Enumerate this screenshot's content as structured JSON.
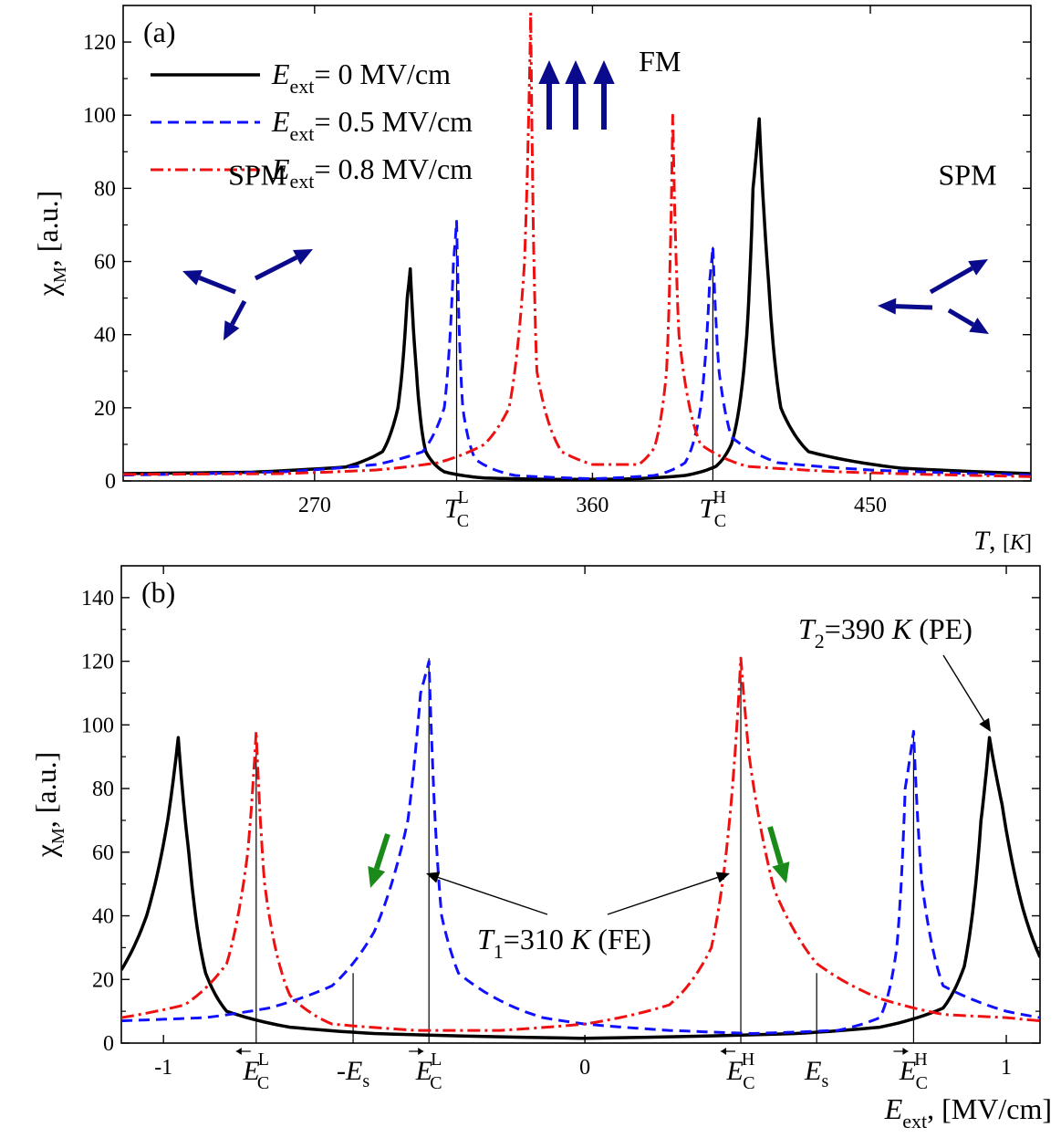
{
  "colors": {
    "e0": "#000000",
    "e05": "#1010ff",
    "e08": "#ee1111",
    "spin_arrow": "#0a0a8c",
    "green_arrow": "#1a8a1a"
  },
  "chart_data": [
    {
      "type": "line",
      "panel_label": "(a)",
      "xlabel": "T, [K]",
      "ylabel": "χM, [a.u.]",
      "xlim": [
        208,
        502
      ],
      "ylim": [
        0,
        130
      ],
      "xticks": [
        270,
        360,
        450
      ],
      "xtick_labels": [
        "270",
        "360",
        "450"
      ],
      "yticks": [
        0,
        20,
        40,
        60,
        80,
        100,
        120
      ],
      "ytick_labels": [
        "0",
        "20",
        "40",
        "60",
        "80",
        "100",
        "120"
      ],
      "special_ticks": [
        {
          "x": 316,
          "label": "TCL",
          "base": "T",
          "sub": "C",
          "sup": "L",
          "line_top": 66
        },
        {
          "x": 399,
          "label": "TCH",
          "base": "T",
          "sub": "C",
          "sup": "H",
          "line_top": 64
        }
      ],
      "grid": false,
      "legend_position": "top-left",
      "series": [
        {
          "name": "Eext= 0 MV/cm",
          "legend_base": "E",
          "legend_sub": "ext",
          "legend_rest": "= 0 MV/cm",
          "style": "solid",
          "color_key": "e0",
          "peaks": [
            {
              "x": 301,
              "h": 58,
              "w": 1.7
            },
            {
              "x": 414,
              "h": 99,
              "w": 3.0
            }
          ],
          "x_end": 420,
          "segments": [
            [
              [
                208,
                2.0
              ],
              [
                250,
                2.4
              ],
              [
                280,
                3.8
              ],
              [
                292,
                8
              ],
              [
                297,
                20
              ],
              [
                300,
                50
              ],
              [
                301,
                58
              ],
              [
                303,
                30
              ],
              [
                306,
                8
              ],
              [
                312,
                2.5
              ],
              [
                325,
                0.8
              ],
              [
                350,
                0.4
              ],
              [
                370,
                0.5
              ],
              [
                390,
                1.5
              ],
              [
                400,
                4
              ],
              [
                405,
                10
              ],
              [
                410,
                40
              ],
              [
                412,
                80
              ],
              [
                414,
                99
              ],
              [
                417,
                55
              ],
              [
                421,
                20
              ],
              [
                430,
                8
              ],
              [
                460,
                3.5
              ],
              [
                502,
                2.0
              ]
            ]
          ]
        },
        {
          "name": "Eext= 0.5 MV/cm",
          "legend_base": "E",
          "legend_sub": "ext",
          "legend_rest": "= 0.5 MV/cm",
          "style": "dashed",
          "color_key": "e05",
          "segments": [
            [
              [
                208,
                1.6
              ],
              [
                260,
                2.5
              ],
              [
                290,
                4.5
              ],
              [
                305,
                8
              ],
              [
                312,
                20
              ],
              [
                315,
                60
              ],
              [
                316,
                71
              ],
              [
                318,
                20
              ],
              [
                322,
                6
              ],
              [
                335,
                1.5
              ],
              [
                360,
                0.6
              ],
              [
                380,
                1.5
              ],
              [
                390,
                5
              ],
              [
                395,
                20
              ],
              [
                398,
                55
              ],
              [
                399,
                64
              ],
              [
                401,
                30
              ],
              [
                405,
                12
              ],
              [
                420,
                5
              ],
              [
                450,
                3
              ],
              [
                502,
                1.6
              ]
            ]
          ]
        },
        {
          "name": "Eext= 0.8 MV/cm",
          "legend_base": "E",
          "legend_sub": "ext",
          "legend_rest": "= 0.8 MV/cm",
          "style": "dashdot",
          "color_key": "e08",
          "segments": [
            [
              [
                208,
                1.8
              ],
              [
                260,
                2.0
              ],
              [
                290,
                3.0
              ],
              [
                310,
                5
              ],
              [
                325,
                10
              ],
              [
                333,
                20
              ],
              [
                338,
                60
              ],
              [
                340,
                128
              ],
              [
                342,
                30
              ],
              [
                350,
                8
              ],
              [
                360,
                4.5
              ],
              [
                375,
                4.5
              ],
              [
                380,
                9
              ],
              [
                384,
                30
              ],
              [
                386,
                100
              ],
              [
                388,
                40
              ],
              [
                395,
                10
              ],
              [
                410,
                4
              ],
              [
                440,
                2.5
              ],
              [
                502,
                1.2
              ]
            ]
          ]
        }
      ],
      "annotations": [
        {
          "text": "SPM",
          "x": 242,
          "y": 81
        },
        {
          "text": "SPM",
          "x": 472,
          "y": 81
        },
        {
          "text": "FM",
          "x": 375,
          "y": 112
        }
      ]
    },
    {
      "type": "line",
      "panel_label": "(b)",
      "xlabel": "Eext, [MV/cm]",
      "ylabel": "χM, [a.u.]",
      "xlim": [
        -1.1,
        1.08
      ],
      "ylim": [
        0,
        150
      ],
      "xticks": [
        -1,
        0,
        1
      ],
      "xtick_labels": [
        "-1",
        "0",
        "1"
      ],
      "yticks": [
        0,
        20,
        40,
        60,
        80,
        100,
        120,
        140
      ],
      "ytick_labels": [
        "0",
        "20",
        "40",
        "60",
        "80",
        "100",
        "120",
        "140"
      ],
      "special_ticks": [
        {
          "x": -0.78,
          "label": "ECL",
          "base": "E",
          "sub": "C",
          "sup": "L",
          "arrow": "left",
          "line_top": 97
        },
        {
          "x": -0.55,
          "label": "-Es",
          "base": "-E",
          "sub": "s",
          "sup": "",
          "arrow": "",
          "line_top": 22
        },
        {
          "x": -0.37,
          "label": "ECL",
          "base": "E",
          "sub": "C",
          "sup": "L",
          "arrow": "right",
          "line_top": 121
        },
        {
          "x": 0.37,
          "label": "ECH",
          "base": "E",
          "sub": "C",
          "sup": "H",
          "arrow": "left",
          "line_top": 121
        },
        {
          "x": 0.55,
          "label": "Es",
          "base": "E",
          "sub": "s",
          "sup": "",
          "arrow": "",
          "line_top": 22
        },
        {
          "x": 0.78,
          "label": "ECH",
          "base": "E",
          "sub": "C",
          "sup": "H",
          "arrow": "right",
          "line_top": 97
        }
      ],
      "grid": false,
      "series": [
        {
          "name": "T2=390 K (PE)",
          "style": "solid",
          "color_key": "e0",
          "segments": [
            [
              [
                -1.1,
                23
              ],
              [
                -1.04,
                40
              ],
              [
                -0.99,
                70
              ],
              [
                -0.965,
                96
              ],
              [
                -0.94,
                60
              ],
              [
                -0.9,
                22
              ],
              [
                -0.85,
                10
              ],
              [
                -0.7,
                5
              ],
              [
                -0.5,
                3
              ],
              [
                0,
                1.5
              ],
              [
                0.5,
                3
              ],
              [
                0.7,
                5
              ],
              [
                0.85,
                11
              ],
              [
                0.9,
                24
              ],
              [
                0.94,
                70
              ],
              [
                0.96,
                96
              ],
              [
                0.99,
                75
              ],
              [
                1.04,
                42
              ],
              [
                1.08,
                27
              ]
            ]
          ]
        },
        {
          "name": "T1=310 K (FE)",
          "style": "dashed",
          "color_key": "e05",
          "segments": [
            [
              [
                -1.1,
                7
              ],
              [
                -0.9,
                8
              ],
              [
                -0.75,
                11
              ],
              [
                -0.6,
                18
              ],
              [
                -0.5,
                35
              ],
              [
                -0.42,
                70
              ],
              [
                -0.39,
                110
              ],
              [
                -0.37,
                120
              ],
              [
                -0.34,
                40
              ],
              [
                -0.3,
                22
              ],
              [
                -0.1,
                8
              ],
              [
                0,
                6
              ],
              [
                0.2,
                4
              ],
              [
                0.4,
                3
              ],
              [
                0.6,
                4
              ],
              [
                0.7,
                8
              ],
              [
                0.74,
                30
              ],
              [
                0.76,
                80
              ],
              [
                0.78,
                98
              ],
              [
                0.8,
                50
              ],
              [
                0.85,
                18
              ],
              [
                1.0,
                10
              ],
              [
                1.08,
                8
              ]
            ]
          ]
        },
        {
          "name": "",
          "style": "dashdot",
          "color_key": "e08",
          "segments": [
            [
              [
                -1.1,
                8
              ],
              [
                -0.95,
                12
              ],
              [
                -0.85,
                25
              ],
              [
                -0.8,
                60
              ],
              [
                -0.78,
                98
              ],
              [
                -0.76,
                50
              ],
              [
                -0.7,
                15
              ],
              [
                -0.6,
                6
              ],
              [
                -0.4,
                4
              ],
              [
                -0.2,
                4
              ],
              [
                0,
                6
              ],
              [
                0.2,
                12
              ],
              [
                0.3,
                30
              ],
              [
                0.35,
                80
              ],
              [
                0.37,
                121
              ],
              [
                0.39,
                90
              ],
              [
                0.45,
                48
              ],
              [
                0.55,
                25
              ],
              [
                0.7,
                14
              ],
              [
                0.85,
                9
              ],
              [
                1.0,
                8
              ],
              [
                1.08,
                7
              ]
            ]
          ]
        }
      ],
      "annotations": [
        {
          "text": "T1=310 K (FE)",
          "base": "T",
          "sub": "1",
          "rest_a": "=310 ",
          "italic": "K",
          "rest_b": " (FE)",
          "x": -0.1,
          "y": 28
        },
        {
          "text": "T2=390 K (PE)",
          "base": "T",
          "sub": "2",
          "rest_a": "=390 ",
          "italic": "K",
          "rest_b": " (PE)",
          "x": 0.55,
          "y": 130
        }
      ]
    }
  ]
}
